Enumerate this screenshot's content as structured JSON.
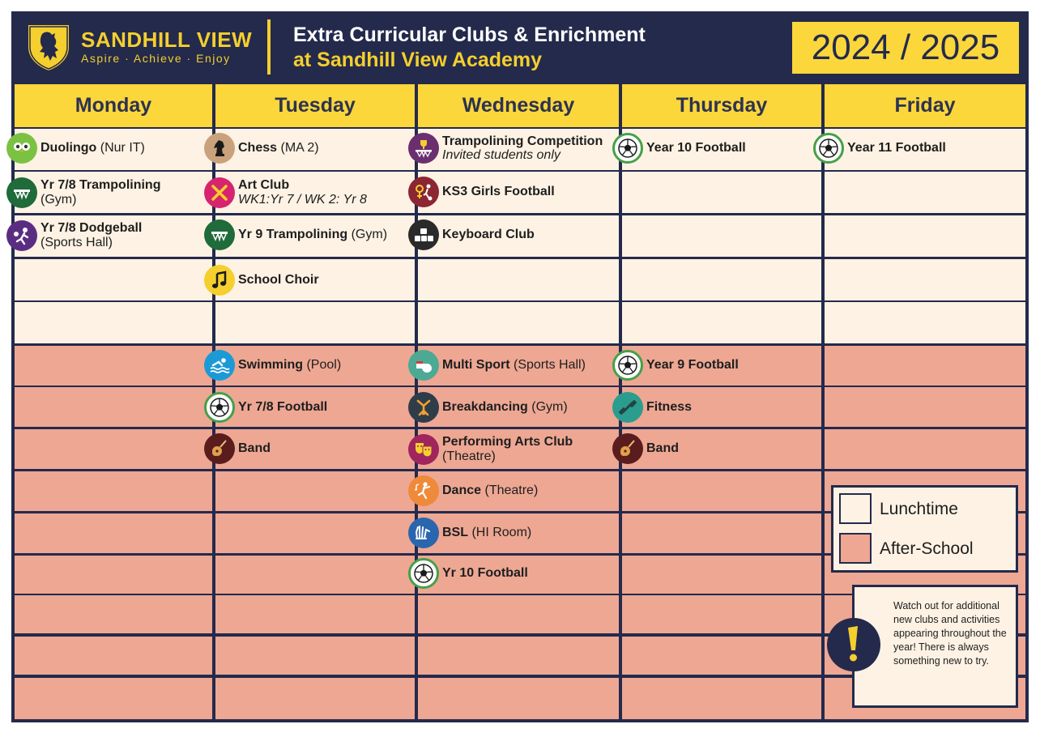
{
  "logo": {
    "name": "SANDHILL VIEW",
    "tagline": "Aspire · Achieve · Enjoy"
  },
  "title": {
    "line1": "Extra Curricular Clubs & Enrichment",
    "line2": "at Sandhill View Academy"
  },
  "year": "2024 / 2025",
  "days": [
    "Monday",
    "Tuesday",
    "Wednesday",
    "Thursday",
    "Friday"
  ],
  "lunchtime": {
    "monday": [
      {
        "name": "Duolingo",
        "detail": "(Nur IT)",
        "icon": "owl-icon"
      },
      {
        "name": "Yr 7/8 Trampolining",
        "detail": "(Gym)",
        "icon": "trampoline-icon"
      },
      {
        "name": "Yr 7/8 Dodgeball",
        "detail": "(Sports Hall)",
        "icon": "dodgeball-icon"
      }
    ],
    "tuesday": [
      {
        "name": "Chess",
        "detail": "(MA 2)",
        "icon": "chess-knight-icon"
      },
      {
        "name": "Art Club",
        "detail": "WK1:Yr 7 / WK 2: Yr 8",
        "icon": "paintbrush-icon"
      },
      {
        "name": "Yr 9 Trampolining",
        "detail": "(Gym)",
        "icon": "trampoline-icon"
      },
      {
        "name": "School Choir",
        "detail": "",
        "icon": "music-note-icon"
      }
    ],
    "wednesday": [
      {
        "name": "Trampolining Competition",
        "detail": "Invited students only",
        "icon": "trophy-trampoline-icon"
      },
      {
        "name": "KS3 Girls Football",
        "detail": "",
        "icon": "girls-football-icon"
      },
      {
        "name": "Keyboard Club",
        "detail": "",
        "icon": "keyboard-icon"
      }
    ],
    "thursday": [
      {
        "name": "Year 10 Football",
        "detail": "",
        "icon": "football-icon"
      }
    ],
    "friday": [
      {
        "name": "Year 11 Football",
        "detail": "",
        "icon": "football-icon"
      }
    ]
  },
  "afterschool": {
    "tuesday": [
      {
        "name": "Swimming",
        "detail": "(Pool)",
        "icon": "swimming-icon"
      },
      {
        "name": "Yr 7/8 Football",
        "detail": "",
        "icon": "football-icon"
      },
      {
        "name": "Band",
        "detail": "",
        "icon": "guitar-icon"
      }
    ],
    "wednesday": [
      {
        "name": "Multi Sport",
        "detail": "(Sports Hall)",
        "icon": "whistle-icon"
      },
      {
        "name": "Breakdancing",
        "detail": "(Gym)",
        "icon": "breakdance-icon"
      },
      {
        "name": "Performing Arts Club",
        "detail": "(Theatre)",
        "icon": "theatre-masks-icon"
      },
      {
        "name": "Dance",
        "detail": "(Theatre)",
        "icon": "dance-icon"
      },
      {
        "name": "BSL",
        "detail": "(HI Room)",
        "icon": "sign-hands-icon"
      },
      {
        "name": "Yr 10 Football",
        "detail": "",
        "icon": "football-icon"
      }
    ],
    "thursday": [
      {
        "name": "Year 9 Football",
        "detail": "",
        "icon": "football-icon"
      },
      {
        "name": "Fitness",
        "detail": "",
        "icon": "dumbbell-icon"
      },
      {
        "name": "Band",
        "detail": "",
        "icon": "guitar-icon"
      }
    ]
  },
  "legend": {
    "lunchtime": "Lunchtime",
    "afterschool": "After-School"
  },
  "note": "Watch out for additional new clubs and activities appearing throughout the year! There is always something new to try.",
  "colors": {
    "navy": "#242a4c",
    "yellow": "#fbd73b",
    "lunch": "#fdf2e4",
    "after": "#eda793",
    "ring": "#45a048"
  }
}
